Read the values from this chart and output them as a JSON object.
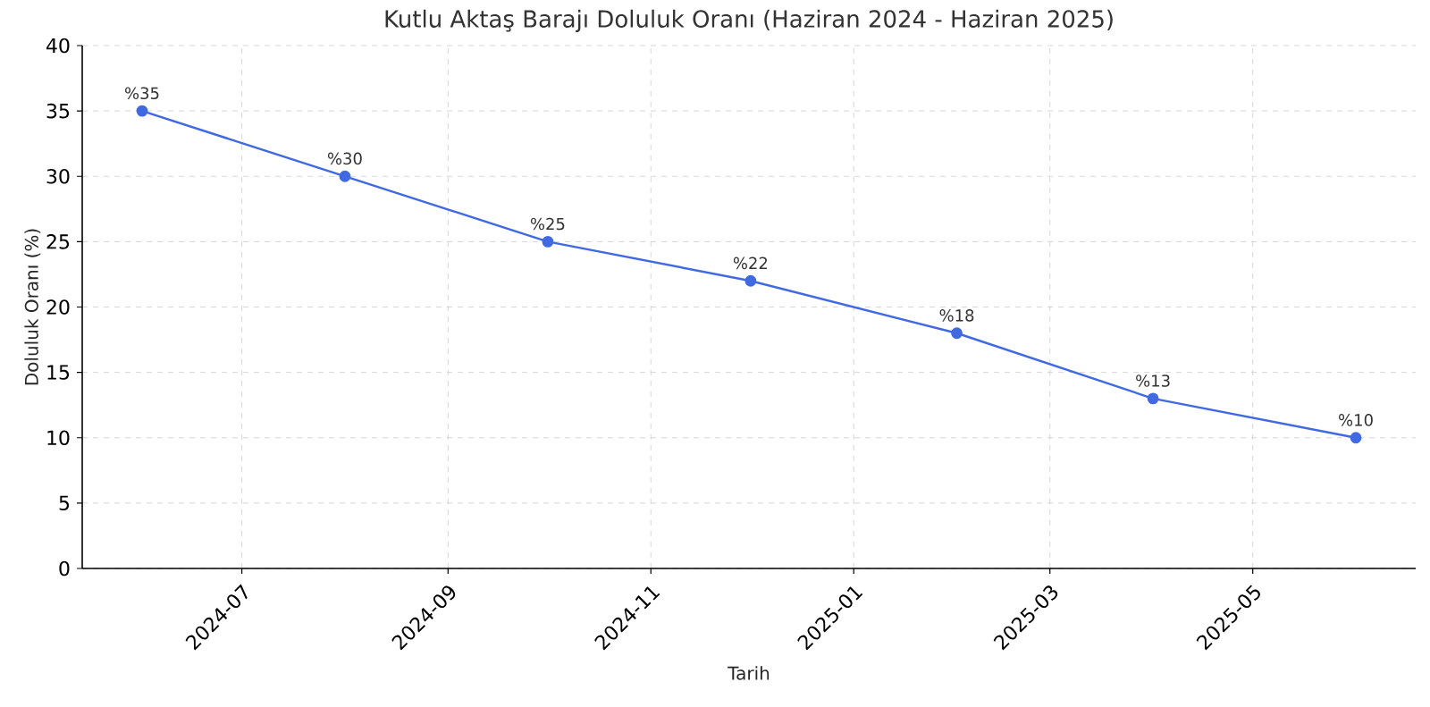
{
  "chart_data": {
    "type": "line",
    "title": "Kutlu Aktaş Barajı Doluluk Oranı (Haziran 2024 - Haziran 2025)",
    "xlabel": "Tarih",
    "ylabel": "Doluluk Oranı (%)",
    "x": [
      "2024-06-01",
      "2024-08-01",
      "2024-10-01",
      "2024-12-01",
      "2025-02-01",
      "2025-04-01",
      "2025-06-01"
    ],
    "series": [
      {
        "color": "#4169e1",
        "values": [
          35,
          30,
          25,
          22,
          18,
          13,
          10
        ],
        "value_labels": [
          "%35",
          "%30",
          "%25",
          "%22",
          "%18",
          "%13",
          "%10"
        ]
      }
    ],
    "xlim": [
      "2024-05-14",
      "2025-06-19"
    ],
    "xticks": [
      "2024-07",
      "2024-09",
      "2024-11",
      "2025-01",
      "2025-03",
      "2025-05"
    ],
    "ylim": [
      0,
      40
    ],
    "yticks": [
      0,
      5,
      10,
      15,
      20,
      25,
      30,
      35,
      40
    ],
    "grid": true,
    "marker": "circle",
    "line_style": "solid"
  }
}
